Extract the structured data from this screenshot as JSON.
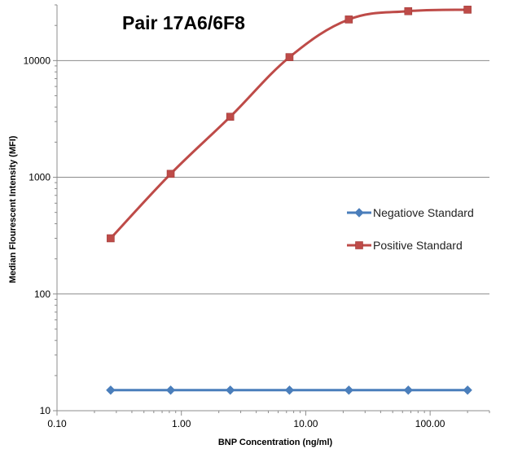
{
  "chart_data": {
    "type": "line",
    "title": "Pair 17A6/6F8",
    "xlabel": "BNP Concentration (ng/ml)",
    "ylabel": "Median Flourescent Intensity (MFI)",
    "x_scale": "log",
    "y_scale": "log",
    "xlim": [
      0.1,
      300
    ],
    "ylim": [
      10,
      30000
    ],
    "x_ticks": [
      0.1,
      1,
      10,
      100
    ],
    "x_tick_labels": [
      "0.10",
      "1.00",
      "10.00",
      "100.00"
    ],
    "y_ticks": [
      10,
      100,
      1000,
      10000
    ],
    "y_tick_labels": [
      "10",
      "100",
      "1000",
      "10000"
    ],
    "grid": "horizontal",
    "legend_position": "right",
    "x": [
      0.27,
      0.82,
      2.47,
      7.4,
      22.2,
      66.7,
      200
    ],
    "series": [
      {
        "name": "Negatiove Standard",
        "color": "#4a7ebb",
        "marker": "diamond",
        "values": [
          15,
          15,
          15,
          15,
          15,
          15,
          15
        ]
      },
      {
        "name": "Positive Standard",
        "color": "#be4b48",
        "marker": "square",
        "values": [
          300,
          1070,
          3300,
          10700,
          22500,
          26500,
          27300
        ]
      }
    ]
  }
}
